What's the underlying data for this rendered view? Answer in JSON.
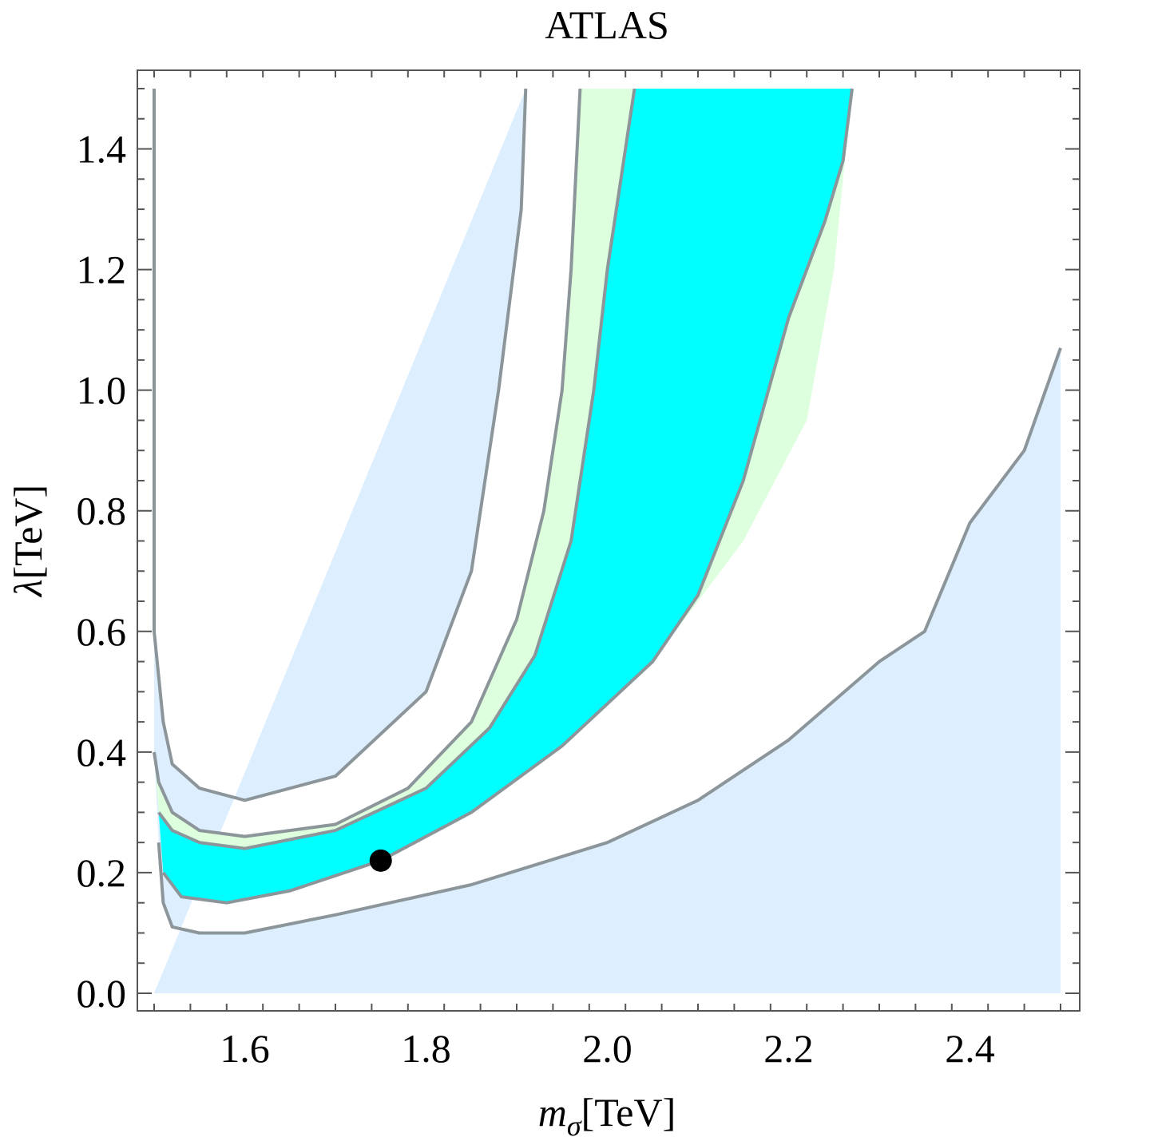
{
  "chart_data": {
    "type": "area",
    "title": "ATLAS",
    "xlabel": {
      "symbol": "m",
      "subscript": "σ",
      "unit": "[TeV]"
    },
    "ylabel": {
      "symbol": "λ",
      "unit": "[TeV]"
    },
    "xlim": [
      1.5,
      2.5
    ],
    "ylim": [
      0.0,
      1.5
    ],
    "x_ticks": [
      "1.6",
      "1.8",
      "2.0",
      "2.2",
      "2.4"
    ],
    "y_ticks": [
      "0.0",
      "0.2",
      "0.4",
      "0.6",
      "0.8",
      "1.0",
      "1.2",
      "1.4"
    ],
    "grid": false,
    "colors": {
      "outer_band": "#ddeeff",
      "middle_band": "#ddffdd",
      "inner_band": "#00ffff",
      "contour": "#8c969a",
      "marker": "#000000",
      "frame": "#555555"
    },
    "regions": [
      {
        "band": "outer_band",
        "left": [
          [
            1.5,
            1.5
          ],
          [
            1.5,
            1.0
          ],
          [
            1.5,
            0.6
          ],
          [
            1.51,
            0.45
          ],
          [
            1.52,
            0.38
          ],
          [
            1.55,
            0.34
          ],
          [
            1.6,
            0.32
          ],
          [
            1.7,
            0.36
          ],
          [
            1.8,
            0.5
          ],
          [
            1.85,
            0.7
          ],
          [
            1.88,
            1.0
          ],
          [
            1.905,
            1.3
          ],
          [
            1.91,
            1.5
          ]
        ],
        "right": [
          [
            1.5,
            0.0
          ],
          [
            2.5,
            0.0
          ],
          [
            2.5,
            1.07
          ],
          [
            2.46,
            0.9
          ],
          [
            2.4,
            0.78
          ],
          [
            2.35,
            0.6
          ],
          [
            2.3,
            0.55
          ],
          [
            2.2,
            0.42
          ],
          [
            2.1,
            0.32
          ],
          [
            2.0,
            0.25
          ],
          [
            1.85,
            0.18
          ],
          [
            1.7,
            0.13
          ],
          [
            1.6,
            0.1
          ],
          [
            1.55,
            0.1
          ],
          [
            1.52,
            0.11
          ],
          [
            1.51,
            0.15
          ],
          [
            1.505,
            0.25
          ],
          [
            1.5,
            0.4
          ]
        ]
      },
      {
        "band": "middle_band",
        "left": [
          [
            1.5,
            0.4
          ],
          [
            1.505,
            0.35
          ],
          [
            1.52,
            0.3
          ],
          [
            1.55,
            0.27
          ],
          [
            1.6,
            0.26
          ],
          [
            1.7,
            0.28
          ],
          [
            1.78,
            0.34
          ],
          [
            1.85,
            0.45
          ],
          [
            1.9,
            0.62
          ],
          [
            1.93,
            0.8
          ],
          [
            1.95,
            1.0
          ],
          [
            1.96,
            1.2
          ],
          [
            1.97,
            1.5
          ]
        ],
        "right": [
          [
            2.27,
            1.5
          ],
          [
            2.25,
            1.2
          ],
          [
            2.22,
            0.95
          ],
          [
            2.15,
            0.75
          ],
          [
            2.05,
            0.55
          ],
          [
            1.95,
            0.42
          ],
          [
            1.85,
            0.3
          ],
          [
            1.75,
            0.22
          ],
          [
            1.65,
            0.17
          ],
          [
            1.58,
            0.15
          ],
          [
            1.53,
            0.17
          ],
          [
            1.51,
            0.22
          ],
          [
            1.505,
            0.3
          ]
        ]
      },
      {
        "band": "inner_band",
        "left": [
          [
            1.505,
            0.3
          ],
          [
            1.52,
            0.27
          ],
          [
            1.55,
            0.25
          ],
          [
            1.6,
            0.24
          ],
          [
            1.7,
            0.27
          ],
          [
            1.8,
            0.34
          ],
          [
            1.87,
            0.44
          ],
          [
            1.92,
            0.56
          ],
          [
            1.96,
            0.75
          ],
          [
            1.985,
            1.0
          ],
          [
            2.0,
            1.2
          ],
          [
            2.03,
            1.5
          ]
        ],
        "right": [
          [
            2.27,
            1.5
          ],
          [
            2.26,
            1.38
          ],
          [
            2.24,
            1.28
          ],
          [
            2.2,
            1.12
          ],
          [
            2.15,
            0.85
          ],
          [
            2.1,
            0.66
          ],
          [
            2.05,
            0.55
          ],
          [
            1.95,
            0.41
          ],
          [
            1.85,
            0.3
          ],
          [
            1.75,
            0.22
          ],
          [
            1.65,
            0.17
          ],
          [
            1.58,
            0.15
          ],
          [
            1.53,
            0.16
          ],
          [
            1.51,
            0.2
          ]
        ]
      }
    ],
    "contours": [
      [
        [
          1.5,
          1.5
        ],
        [
          1.5,
          1.0
        ],
        [
          1.5,
          0.6
        ],
        [
          1.51,
          0.45
        ],
        [
          1.52,
          0.38
        ],
        [
          1.55,
          0.34
        ],
        [
          1.6,
          0.32
        ],
        [
          1.7,
          0.36
        ],
        [
          1.8,
          0.5
        ],
        [
          1.85,
          0.7
        ],
        [
          1.88,
          1.0
        ],
        [
          1.905,
          1.3
        ],
        [
          1.91,
          1.5
        ]
      ],
      [
        [
          1.5,
          0.4
        ],
        [
          1.505,
          0.35
        ],
        [
          1.52,
          0.3
        ],
        [
          1.55,
          0.27
        ],
        [
          1.6,
          0.26
        ],
        [
          1.7,
          0.28
        ],
        [
          1.78,
          0.34
        ],
        [
          1.85,
          0.45
        ],
        [
          1.9,
          0.62
        ],
        [
          1.93,
          0.8
        ],
        [
          1.95,
          1.0
        ],
        [
          1.96,
          1.2
        ],
        [
          1.97,
          1.5
        ]
      ],
      [
        [
          1.505,
          0.3
        ],
        [
          1.52,
          0.27
        ],
        [
          1.55,
          0.25
        ],
        [
          1.6,
          0.24
        ],
        [
          1.7,
          0.27
        ],
        [
          1.8,
          0.34
        ],
        [
          1.87,
          0.44
        ],
        [
          1.92,
          0.56
        ],
        [
          1.96,
          0.75
        ],
        [
          1.985,
          1.0
        ],
        [
          2.0,
          1.2
        ],
        [
          2.03,
          1.5
        ]
      ],
      [
        [
          1.51,
          0.2
        ],
        [
          1.53,
          0.16
        ],
        [
          1.58,
          0.15
        ],
        [
          1.65,
          0.17
        ],
        [
          1.75,
          0.22
        ],
        [
          1.85,
          0.3
        ],
        [
          1.95,
          0.41
        ],
        [
          2.05,
          0.55
        ],
        [
          2.1,
          0.66
        ],
        [
          2.15,
          0.85
        ],
        [
          2.2,
          1.12
        ],
        [
          2.24,
          1.28
        ],
        [
          2.26,
          1.38
        ],
        [
          2.27,
          1.5
        ]
      ],
      [
        [
          1.505,
          0.25
        ],
        [
          1.51,
          0.15
        ],
        [
          1.52,
          0.11
        ],
        [
          1.55,
          0.1
        ],
        [
          1.6,
          0.1
        ],
        [
          1.7,
          0.13
        ],
        [
          1.85,
          0.18
        ],
        [
          2.0,
          0.25
        ],
        [
          2.1,
          0.32
        ],
        [
          2.2,
          0.42
        ],
        [
          2.3,
          0.55
        ],
        [
          2.35,
          0.6
        ],
        [
          2.4,
          0.78
        ],
        [
          2.46,
          0.9
        ],
        [
          2.5,
          1.07
        ]
      ]
    ],
    "marker": {
      "x": 1.75,
      "y": 0.22
    }
  }
}
